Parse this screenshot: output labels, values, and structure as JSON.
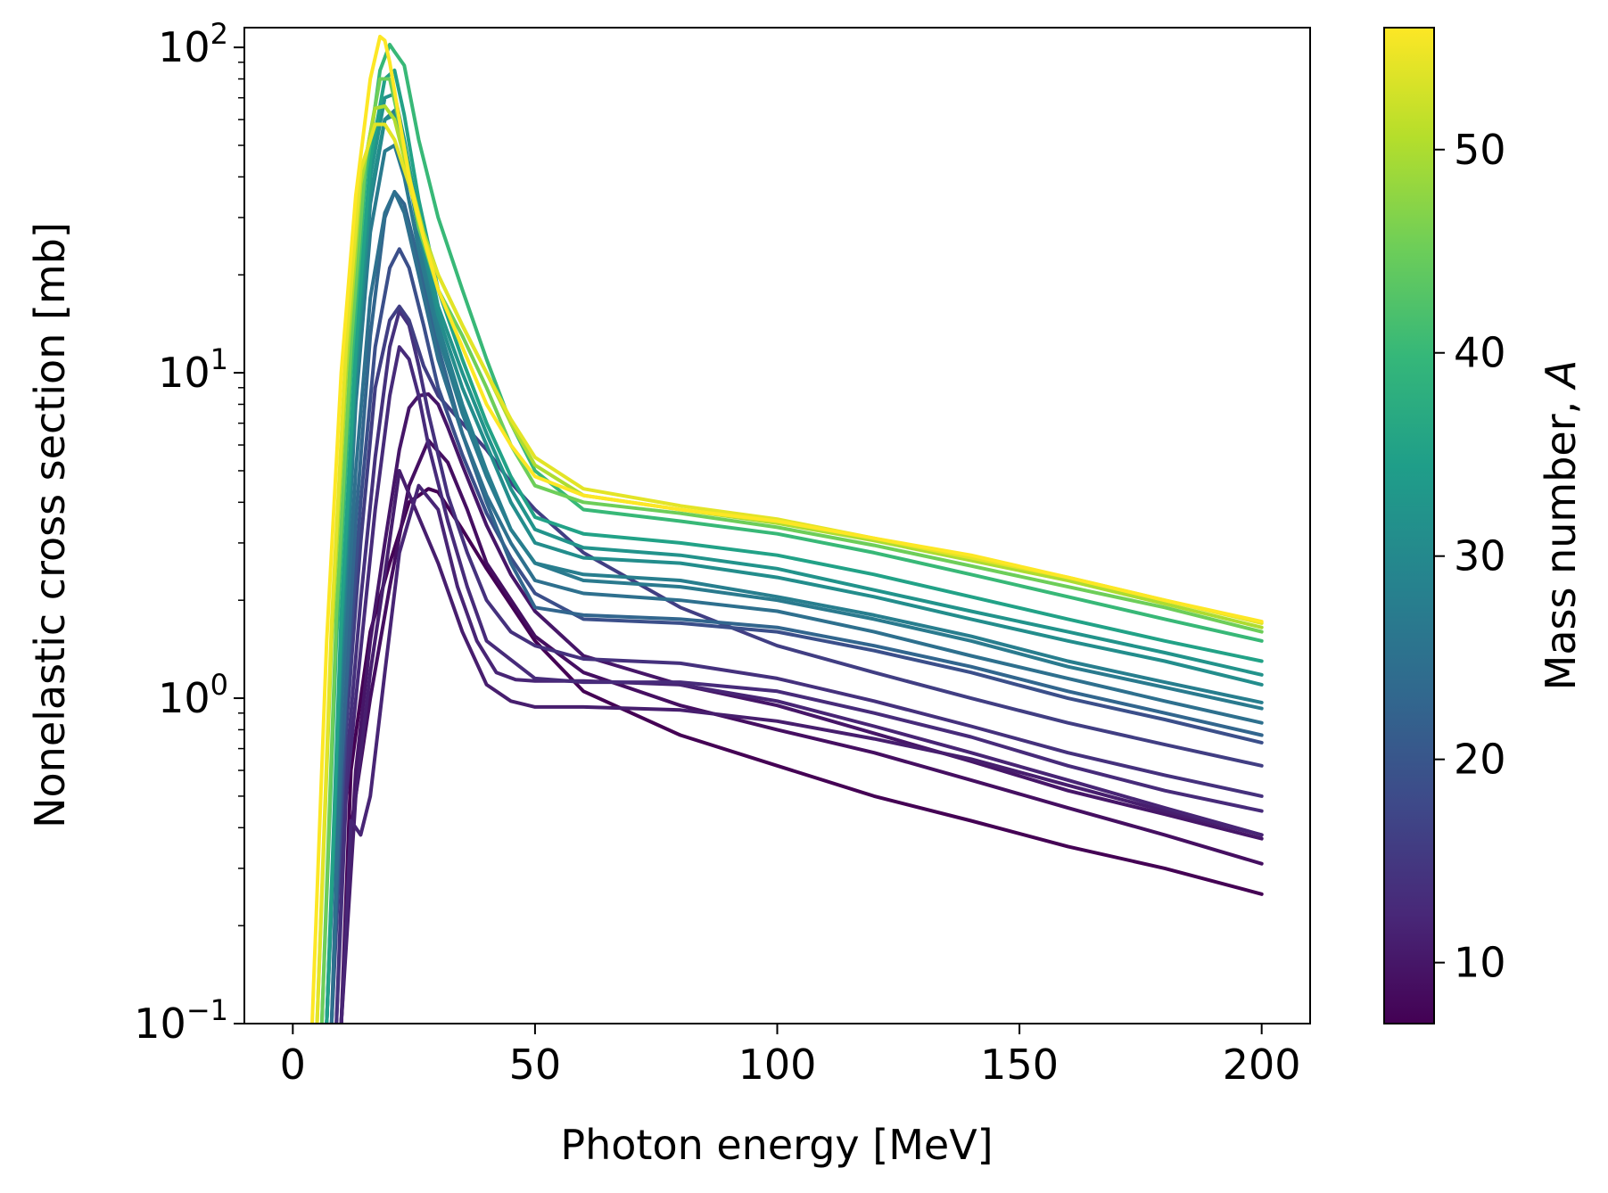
{
  "chart_data": {
    "type": "line",
    "xlabel": "Photon energy [MeV]",
    "ylabel": "Nonelastic cross section [mb]",
    "xlim": [
      -10,
      210
    ],
    "ylim": [
      0.1,
      115
    ],
    "yscale": "log",
    "grid": false,
    "x_ticks": [
      0,
      50,
      100,
      150,
      200
    ],
    "x_tick_labels": [
      "0",
      "50",
      "100",
      "150",
      "200"
    ],
    "y_ticks": [
      0.1,
      1,
      10,
      100
    ],
    "y_tick_labels": [
      {
        "base": "10",
        "exp": "−1"
      },
      {
        "base": "10",
        "exp": "0"
      },
      {
        "base": "10",
        "exp": "1"
      },
      {
        "base": "10",
        "exp": "2"
      }
    ],
    "colorbar": {
      "label": "Mass number, A",
      "label_prefix": "Mass number, ",
      "label_var": "A",
      "range": [
        7,
        56
      ],
      "colormap": "viridis",
      "ticks": [
        10,
        20,
        30,
        40,
        50
      ],
      "tick_labels": [
        "10",
        "20",
        "30",
        "40",
        "50"
      ],
      "colors": [
        "#440154",
        "#482878",
        "#3e4989",
        "#31688e",
        "#26828e",
        "#1f9e89",
        "#35b779",
        "#6ece58",
        "#b5de2b",
        "#fde725"
      ]
    },
    "series": [
      {
        "A": 7,
        "x": [
          10,
          12,
          14,
          16,
          20,
          24,
          28,
          30,
          35,
          40,
          50,
          60,
          80,
          100,
          120,
          140,
          160,
          180,
          200
        ],
        "y": [
          0.1,
          0.6,
          1.0,
          1.6,
          2.6,
          4.0,
          4.4,
          4.3,
          3.3,
          2.5,
          1.5,
          1.05,
          0.77,
          0.62,
          0.5,
          0.42,
          0.35,
          0.3,
          0.25
        ]
      },
      {
        "A": 9,
        "x": [
          10,
          12,
          16,
          20,
          24,
          28,
          32,
          36,
          40,
          50,
          60,
          80,
          100,
          120,
          140,
          160,
          180,
          200
        ],
        "y": [
          0.1,
          0.4,
          1.0,
          2.2,
          4.5,
          6.2,
          5.3,
          3.8,
          2.6,
          1.55,
          1.2,
          0.95,
          0.8,
          0.68,
          0.56,
          0.46,
          0.38,
          0.31
        ]
      },
      {
        "A": 10,
        "x": [
          10,
          13,
          16,
          19,
          22,
          24,
          26,
          28,
          30,
          32,
          35,
          40,
          45,
          50,
          60,
          80,
          100,
          120,
          140,
          160,
          180,
          200
        ],
        "y": [
          0.1,
          0.6,
          1.5,
          3.0,
          5.8,
          7.8,
          8.5,
          8.6,
          8.0,
          6.8,
          5.2,
          3.4,
          2.4,
          1.85,
          1.35,
          1.1,
          0.95,
          0.78,
          0.64,
          0.52,
          0.44,
          0.37
        ]
      },
      {
        "A": 11,
        "x": [
          10,
          13,
          16,
          19,
          22,
          26,
          30,
          35,
          40,
          45,
          50,
          55,
          60,
          80,
          100,
          120,
          140,
          160,
          180,
          200
        ],
        "y": [
          0.1,
          0.5,
          1.2,
          2.4,
          5.0,
          3.6,
          2.6,
          1.6,
          1.1,
          0.98,
          0.94,
          0.94,
          0.94,
          0.92,
          0.85,
          0.75,
          0.65,
          0.54,
          0.45,
          0.38
        ]
      },
      {
        "A": 12,
        "x": [
          10,
          12,
          14,
          16,
          19,
          22,
          26,
          30,
          34,
          38,
          42,
          46,
          50,
          60,
          80,
          100,
          120,
          140,
          160,
          180,
          200
        ],
        "y": [
          0.1,
          0.42,
          0.38,
          0.5,
          1.2,
          2.8,
          4.5,
          3.8,
          2.2,
          1.5,
          1.2,
          1.14,
          1.13,
          1.13,
          1.1,
          0.98,
          0.82,
          0.68,
          0.56,
          0.46,
          0.38
        ]
      },
      {
        "A": 13,
        "x": [
          9,
          11,
          14,
          17,
          20,
          22,
          24,
          26,
          28,
          32,
          36,
          40,
          50,
          60,
          80,
          100,
          120,
          140,
          160,
          180,
          200
        ],
        "y": [
          0.1,
          0.5,
          1.4,
          3.8,
          8.5,
          12,
          11,
          8.5,
          6.0,
          3.5,
          2.2,
          1.5,
          1.15,
          1.12,
          1.12,
          1.05,
          0.9,
          0.76,
          0.62,
          0.52,
          0.45
        ]
      },
      {
        "A": 14,
        "x": [
          9,
          11,
          14,
          17,
          20,
          22,
          24,
          26,
          28,
          32,
          36,
          40,
          45,
          50,
          60,
          80,
          100,
          120,
          140,
          160,
          180,
          200
        ],
        "y": [
          0.1,
          0.6,
          2.0,
          5.5,
          12,
          15.5,
          14,
          10.5,
          7.5,
          4.2,
          2.8,
          2.0,
          1.6,
          1.45,
          1.32,
          1.28,
          1.15,
          0.98,
          0.82,
          0.68,
          0.58,
          0.5
        ]
      },
      {
        "A": 16,
        "x": [
          8,
          11,
          14,
          17,
          20,
          22,
          24,
          27,
          30,
          35,
          40,
          45,
          50,
          60,
          80,
          100,
          120,
          140,
          160,
          180,
          200
        ],
        "y": [
          0.1,
          0.8,
          3.0,
          9.0,
          14.5,
          16,
          14.5,
          10.5,
          8.5,
          7.0,
          5.8,
          4.6,
          3.8,
          2.8,
          1.9,
          1.45,
          1.2,
          1.0,
          0.84,
          0.72,
          0.62
        ]
      },
      {
        "A": 19,
        "x": [
          8,
          11,
          14,
          17,
          20,
          22,
          24,
          27,
          30,
          35,
          40,
          45,
          50,
          60,
          80,
          100,
          120,
          140,
          160,
          180,
          200
        ],
        "y": [
          0.1,
          1.0,
          4.0,
          12,
          21,
          24,
          21,
          14,
          9,
          5.6,
          3.7,
          2.7,
          2.1,
          1.75,
          1.7,
          1.6,
          1.4,
          1.2,
          1.0,
          0.86,
          0.73
        ]
      },
      {
        "A": 23,
        "x": [
          8,
          10,
          13,
          16,
          19,
          21,
          23,
          26,
          30,
          35,
          40,
          45,
          50,
          60,
          80,
          100,
          120,
          140,
          160,
          180,
          200
        ],
        "y": [
          0.1,
          0.6,
          3.5,
          13,
          30,
          36,
          33,
          22,
          12,
          6.5,
          4.0,
          2.6,
          1.9,
          1.8,
          1.75,
          1.65,
          1.45,
          1.25,
          1.05,
          0.9,
          0.77
        ]
      },
      {
        "A": 25,
        "x": [
          8,
          10,
          13,
          16,
          19,
          21,
          23,
          26,
          30,
          35,
          40,
          45,
          50,
          60,
          80,
          100,
          120,
          140,
          160,
          180,
          200
        ],
        "y": [
          0.1,
          0.9,
          5.0,
          17,
          31,
          36,
          31,
          20,
          11,
          6.5,
          4.2,
          3.0,
          2.3,
          2.1,
          2.0,
          1.85,
          1.6,
          1.35,
          1.15,
          0.98,
          0.84
        ]
      },
      {
        "A": 27,
        "x": [
          7,
          10,
          13,
          16,
          19,
          21,
          23,
          26,
          30,
          35,
          40,
          45,
          50,
          60,
          80,
          100,
          120,
          140,
          160,
          180,
          200
        ],
        "y": [
          0.1,
          1.2,
          8.0,
          27,
          48,
          50,
          40,
          24,
          13,
          7.5,
          4.8,
          3.3,
          2.6,
          2.3,
          2.2,
          2.0,
          1.75,
          1.5,
          1.25,
          1.08,
          0.93
        ]
      },
      {
        "A": 28,
        "x": [
          7,
          10,
          13,
          16,
          19,
          21,
          23,
          26,
          30,
          35,
          40,
          45,
          50,
          60,
          80,
          100,
          120,
          140,
          160,
          180,
          200
        ],
        "y": [
          0.1,
          1.3,
          9.0,
          33,
          60,
          64,
          48,
          27,
          14,
          8.0,
          5.0,
          3.3,
          2.6,
          2.4,
          2.3,
          2.05,
          1.8,
          1.55,
          1.3,
          1.12,
          0.97
        ]
      },
      {
        "A": 31,
        "x": [
          7,
          10,
          13,
          16,
          19,
          21,
          23,
          26,
          30,
          35,
          40,
          45,
          50,
          60,
          80,
          100,
          120,
          140,
          160,
          180,
          200
        ],
        "y": [
          0.1,
          1.5,
          10,
          35,
          60,
          62,
          47,
          28,
          15,
          9.0,
          6.0,
          4.0,
          3.0,
          2.7,
          2.6,
          2.35,
          2.05,
          1.75,
          1.5,
          1.3,
          1.1
        ]
      },
      {
        "A": 32,
        "x": [
          7,
          10,
          13,
          16,
          19,
          21,
          23,
          26,
          30,
          35,
          40,
          45,
          50,
          60,
          80,
          100,
          120,
          140,
          160,
          180,
          200
        ],
        "y": [
          0.1,
          1.6,
          11,
          40,
          70,
          72,
          52,
          30,
          16,
          10,
          6.5,
          4.4,
          3.3,
          2.9,
          2.75,
          2.5,
          2.15,
          1.85,
          1.6,
          1.38,
          1.18
        ]
      },
      {
        "A": 35,
        "x": [
          7,
          10,
          13,
          16,
          19,
          21,
          23,
          26,
          30,
          35,
          40,
          45,
          50,
          60,
          80,
          100,
          120,
          140,
          160,
          180,
          200
        ],
        "y": [
          0.1,
          1.8,
          12,
          45,
          80,
          85,
          62,
          34,
          18,
          11,
          7.0,
          4.8,
          3.6,
          3.2,
          3.0,
          2.75,
          2.4,
          2.05,
          1.75,
          1.5,
          1.3
        ]
      },
      {
        "A": 40,
        "x": [
          6,
          9,
          12,
          15,
          18,
          20,
          21,
          23,
          26,
          30,
          35,
          40,
          45,
          50,
          60,
          80,
          100,
          120,
          140,
          160,
          180,
          200
        ],
        "y": [
          0.1,
          1.5,
          10,
          40,
          85,
          102,
          97,
          88,
          52,
          30,
          18,
          11,
          7.0,
          5.0,
          3.8,
          3.5,
          3.2,
          2.8,
          2.4,
          2.05,
          1.75,
          1.5
        ]
      },
      {
        "A": 45,
        "x": [
          6,
          9,
          12,
          15,
          18,
          20,
          23,
          26,
          30,
          35,
          40,
          45,
          50,
          60,
          80,
          100,
          120,
          140,
          160,
          180,
          200
        ],
        "y": [
          0.1,
          1.8,
          12,
          45,
          80,
          80,
          50,
          28,
          18,
          13,
          9.0,
          6.0,
          4.5,
          4.0,
          3.7,
          3.35,
          2.95,
          2.55,
          2.2,
          1.9,
          1.6
        ]
      },
      {
        "A": 50,
        "x": [
          5,
          8,
          11,
          14,
          17,
          19,
          21,
          24,
          27,
          30,
          35,
          40,
          45,
          50,
          60,
          80,
          100,
          120,
          140,
          160,
          180,
          200
        ],
        "y": [
          0.1,
          1.5,
          10,
          38,
          65,
          66,
          60,
          40,
          27,
          20,
          14,
          10,
          7.0,
          5.2,
          4.2,
          3.8,
          3.45,
          3.05,
          2.65,
          2.3,
          1.95,
          1.65
        ]
      },
      {
        "A": 54,
        "x": [
          5,
          8,
          11,
          14,
          17,
          19,
          21,
          24,
          27,
          30,
          35,
          40,
          45,
          50,
          60,
          80,
          100,
          120,
          140,
          160,
          180,
          200
        ],
        "y": [
          0.1,
          1.7,
          12,
          42,
          58,
          58,
          52,
          38,
          26,
          20,
          14,
          10,
          7.2,
          5.5,
          4.4,
          3.9,
          3.55,
          3.1,
          2.7,
          2.35,
          2.0,
          1.7
        ]
      },
      {
        "A": 56,
        "x": [
          4,
          7,
          10,
          13,
          16,
          18,
          19,
          20,
          22,
          24,
          27,
          30,
          35,
          40,
          45,
          50,
          60,
          80,
          100,
          120,
          140,
          160,
          180,
          200
        ],
        "y": [
          0.1,
          1.5,
          10,
          35,
          80,
          108,
          105,
          90,
          60,
          40,
          26,
          18,
          12,
          8.0,
          6.0,
          4.8,
          4.2,
          3.8,
          3.5,
          3.1,
          2.75,
          2.35,
          2.0,
          1.72
        ]
      }
    ]
  }
}
